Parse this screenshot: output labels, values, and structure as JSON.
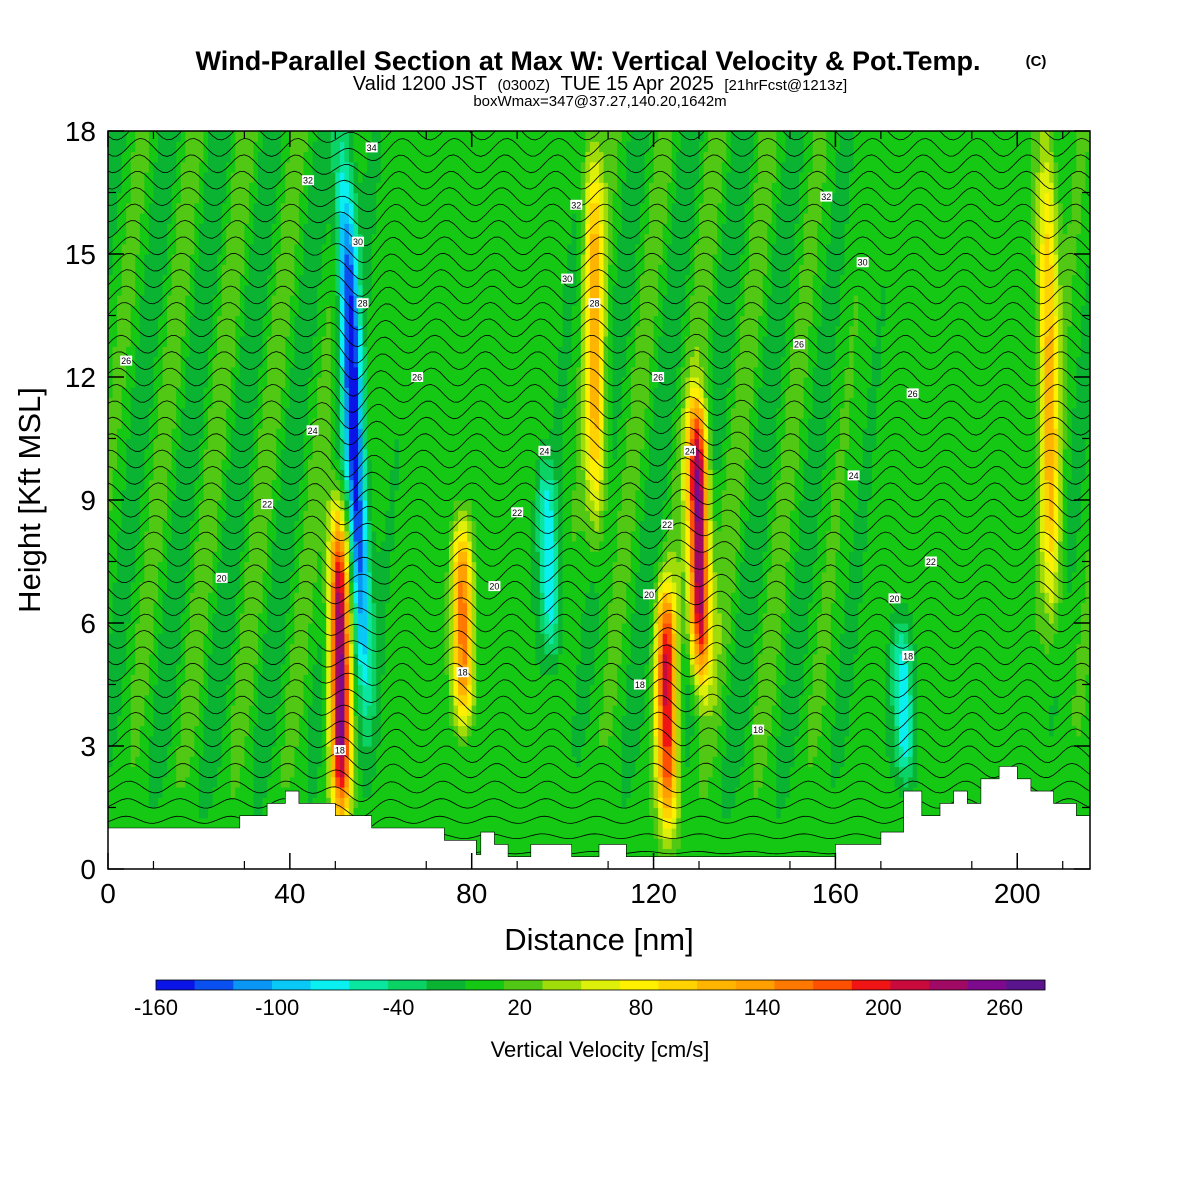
{
  "header": {
    "title": "Wind-Parallel Section at Max W: Vertical Velocity & Pot.Temp.",
    "copyright": "(C)",
    "valid_prefix": "Valid 1200 JST",
    "valid_utc": "(0300Z)",
    "valid_date": "TUE 15 Apr 2025",
    "forecast": "[21hrFcst@1213z]",
    "box_info": "boxWmax=347@37.27,140.20,1642m"
  },
  "chart_data": {
    "type": "heatmap",
    "xlabel": "Distance [nm]",
    "ylabel": "Height [Kft MSL]",
    "xlim": [
      0,
      216
    ],
    "ylim": [
      0,
      18
    ],
    "x_ticks": [
      "0",
      "40",
      "80",
      "120",
      "160",
      "200"
    ],
    "x_tick_values": [
      0,
      40,
      80,
      120,
      160,
      200
    ],
    "y_ticks": [
      "0",
      "3",
      "6",
      "9",
      "12",
      "15",
      "18"
    ],
    "y_tick_values": [
      0,
      3,
      6,
      9,
      12,
      15,
      18
    ],
    "colorbar": {
      "label": "Vertical Velocity [cm/s]",
      "tick_labels": [
        "-160",
        "-100",
        "-40",
        "20",
        "80",
        "140",
        "200",
        "260"
      ],
      "tick_values": [
        -160,
        -100,
        -40,
        20,
        80,
        140,
        200,
        260
      ],
      "bin_edges": [
        -160,
        -140,
        -120,
        -100,
        -80,
        -60,
        -40,
        -20,
        0,
        20,
        40,
        60,
        80,
        100,
        120,
        140,
        160,
        180,
        200,
        220,
        240,
        260,
        280
      ],
      "colors": [
        "#0a14e6",
        "#0a50f0",
        "#0a96f5",
        "#0ac8f5",
        "#0af0f0",
        "#0ae6a0",
        "#0ad264",
        "#0ab432",
        "#14c814",
        "#50c814",
        "#a0dc0a",
        "#dcf00a",
        "#fff000",
        "#ffd200",
        "#ffb400",
        "#ffa000",
        "#ff7800",
        "#ff5000",
        "#f01414",
        "#c80a3c",
        "#a00a64",
        "#7d0a8c",
        "#5a148c"
      ]
    },
    "vertical_velocity_features": [
      {
        "x": 51,
        "z_range": [
          1.0,
          9.0
        ],
        "peak_cm_s": 260,
        "sign": "up"
      },
      {
        "x": 54,
        "z_range": [
          4.0,
          18.0
        ],
        "peak_cm_s": -160,
        "sign": "down"
      },
      {
        "x": 78,
        "z_range": [
          3.5,
          8.5
        ],
        "peak_cm_s": 160,
        "sign": "up"
      },
      {
        "x": 97,
        "z_range": [
          5.0,
          10.0
        ],
        "peak_cm_s": -80,
        "sign": "down"
      },
      {
        "x": 107,
        "z_range": [
          8.0,
          18.0
        ],
        "peak_cm_s": 120,
        "sign": "up"
      },
      {
        "x": 123,
        "z_range": [
          0.8,
          7.0
        ],
        "peak_cm_s": 200,
        "sign": "up"
      },
      {
        "x": 130,
        "z_range": [
          4.5,
          11.5
        ],
        "peak_cm_s": 280,
        "sign": "up"
      },
      {
        "x": 175,
        "z_range": [
          2.0,
          6.0
        ],
        "peak_cm_s": -80,
        "sign": "down"
      },
      {
        "x": 207,
        "z_range": [
          6.0,
          18.0
        ],
        "peak_cm_s": 120,
        "sign": "up"
      }
    ],
    "potential_temperature_labels": [
      {
        "text": "34",
        "x": 58,
        "z": 17.6
      },
      {
        "text": "32",
        "x": 44,
        "z": 16.8
      },
      {
        "text": "32",
        "x": 103,
        "z": 16.2
      },
      {
        "text": "32",
        "x": 158,
        "z": 16.4
      },
      {
        "text": "30",
        "x": 55,
        "z": 15.3
      },
      {
        "text": "30",
        "x": 101,
        "z": 14.4
      },
      {
        "text": "30",
        "x": 166,
        "z": 14.8
      },
      {
        "text": "28",
        "x": 56,
        "z": 13.8
      },
      {
        "text": "28",
        "x": 107,
        "z": 13.8
      },
      {
        "text": "26",
        "x": 4,
        "z": 12.4
      },
      {
        "text": "26",
        "x": 68,
        "z": 12.0
      },
      {
        "text": "26",
        "x": 121,
        "z": 12.0
      },
      {
        "text": "26",
        "x": 152,
        "z": 12.8
      },
      {
        "text": "26",
        "x": 177,
        "z": 11.6
      },
      {
        "text": "24",
        "x": 45,
        "z": 10.7
      },
      {
        "text": "24",
        "x": 96,
        "z": 10.2
      },
      {
        "text": "24",
        "x": 128,
        "z": 10.2
      },
      {
        "text": "24",
        "x": 164,
        "z": 9.6
      },
      {
        "text": "22",
        "x": 35,
        "z": 8.9
      },
      {
        "text": "22",
        "x": 90,
        "z": 8.7
      },
      {
        "text": "22",
        "x": 123,
        "z": 8.4
      },
      {
        "text": "22",
        "x": 181,
        "z": 7.5
      },
      {
        "text": "20",
        "x": 25,
        "z": 7.1
      },
      {
        "text": "20",
        "x": 85,
        "z": 6.9
      },
      {
        "text": "20",
        "x": 119,
        "z": 6.7
      },
      {
        "text": "20",
        "x": 173,
        "z": 6.6
      },
      {
        "text": "18",
        "x": 78,
        "z": 4.8
      },
      {
        "text": "18",
        "x": 117,
        "z": 4.5
      },
      {
        "text": "18",
        "x": 176,
        "z": 5.2
      },
      {
        "text": "18",
        "x": 51,
        "z": 2.9
      },
      {
        "text": "18",
        "x": 143,
        "z": 3.4
      }
    ],
    "terrain_height_kft": [
      {
        "x": 0,
        "z": 1.0
      },
      {
        "x": 29,
        "z": 1.0
      },
      {
        "x": 29,
        "z": 1.3
      },
      {
        "x": 35,
        "z": 1.3
      },
      {
        "x": 35,
        "z": 1.6
      },
      {
        "x": 39,
        "z": 1.6
      },
      {
        "x": 39,
        "z": 1.9
      },
      {
        "x": 42,
        "z": 1.9
      },
      {
        "x": 42,
        "z": 1.6
      },
      {
        "x": 50,
        "z": 1.6
      },
      {
        "x": 50,
        "z": 1.3
      },
      {
        "x": 58,
        "z": 1.3
      },
      {
        "x": 58,
        "z": 1.0
      },
      {
        "x": 74,
        "z": 1.0
      },
      {
        "x": 74,
        "z": 0.7
      },
      {
        "x": 81,
        "z": 0.7
      },
      {
        "x": 81,
        "z": 0.35
      },
      {
        "x": 82,
        "z": 0.35
      },
      {
        "x": 82,
        "z": 0.9
      },
      {
        "x": 85,
        "z": 0.9
      },
      {
        "x": 85,
        "z": 0.6
      },
      {
        "x": 88,
        "z": 0.6
      },
      {
        "x": 88,
        "z": 0.3
      },
      {
        "x": 93,
        "z": 0.3
      },
      {
        "x": 93,
        "z": 0.6
      },
      {
        "x": 102,
        "z": 0.6
      },
      {
        "x": 102,
        "z": 0.3
      },
      {
        "x": 108,
        "z": 0.3
      },
      {
        "x": 108,
        "z": 0.6
      },
      {
        "x": 114,
        "z": 0.6
      },
      {
        "x": 114,
        "z": 0.3
      },
      {
        "x": 160,
        "z": 0.3
      },
      {
        "x": 160,
        "z": 0.6
      },
      {
        "x": 170,
        "z": 0.6
      },
      {
        "x": 170,
        "z": 0.9
      },
      {
        "x": 175,
        "z": 0.9
      },
      {
        "x": 175,
        "z": 1.9
      },
      {
        "x": 179,
        "z": 1.9
      },
      {
        "x": 179,
        "z": 1.3
      },
      {
        "x": 183,
        "z": 1.3
      },
      {
        "x": 183,
        "z": 1.6
      },
      {
        "x": 186,
        "z": 1.6
      },
      {
        "x": 186,
        "z": 1.9
      },
      {
        "x": 189,
        "z": 1.9
      },
      {
        "x": 189,
        "z": 1.6
      },
      {
        "x": 192,
        "z": 1.6
      },
      {
        "x": 192,
        "z": 2.2
      },
      {
        "x": 196,
        "z": 2.2
      },
      {
        "x": 196,
        "z": 2.5
      },
      {
        "x": 200,
        "z": 2.5
      },
      {
        "x": 200,
        "z": 2.2
      },
      {
        "x": 203,
        "z": 2.2
      },
      {
        "x": 203,
        "z": 1.9
      },
      {
        "x": 208,
        "z": 1.9
      },
      {
        "x": 208,
        "z": 1.6
      },
      {
        "x": 213,
        "z": 1.6
      },
      {
        "x": 213,
        "z": 1.3
      },
      {
        "x": 216,
        "z": 1.3
      }
    ],
    "grid": false,
    "legend": "colorbar-bottom"
  }
}
